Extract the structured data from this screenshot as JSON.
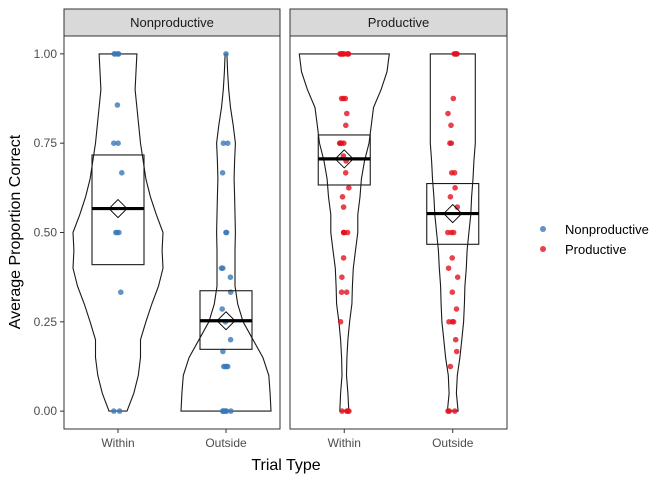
{
  "chart_data": {
    "type": "violin",
    "xlabel": "Trial Type",
    "ylabel": "Average Proportion Correct",
    "categories": [
      "Within",
      "Outside"
    ],
    "ylim": [
      -0.05,
      1.05
    ],
    "yticks": [
      "0.00",
      "0.25",
      "0.50",
      "0.75",
      "1.00"
    ],
    "ytick_values": [
      0,
      0.25,
      0.5,
      0.75,
      1.0
    ],
    "grid": false,
    "legend_position": "right",
    "legend": [
      {
        "name": "Nonproductive",
        "color": "#3a78b6"
      },
      {
        "name": "Productive",
        "color": "#e3121f"
      }
    ],
    "panels": [
      {
        "title": "Nonproductive",
        "group": "Nonproductive",
        "color": "#3a78b6",
        "groups": [
          {
            "category": "Within",
            "mean": 0.567,
            "median": 0.567,
            "box_low": 0.41,
            "box_high": 0.717,
            "violin": [
              [
                0,
                0.2
              ],
              [
                0.05,
                0.35
              ],
              [
                0.1,
                0.45
              ],
              [
                0.15,
                0.5
              ],
              [
                0.2,
                0.5
              ],
              [
                0.25,
                0.62
              ],
              [
                0.3,
                0.75
              ],
              [
                0.35,
                0.9
              ],
              [
                0.4,
                1.0
              ],
              [
                0.45,
                0.98
              ],
              [
                0.5,
                1.0
              ],
              [
                0.55,
                0.85
              ],
              [
                0.6,
                0.72
              ],
              [
                0.65,
                0.62
              ],
              [
                0.7,
                0.56
              ],
              [
                0.75,
                0.5
              ],
              [
                0.8,
                0.46
              ],
              [
                0.85,
                0.42
              ],
              [
                0.9,
                0.38
              ],
              [
                0.95,
                0.4
              ],
              [
                1.0,
                0.42
              ]
            ],
            "points": [
              1,
              1,
              1,
              1,
              0.857,
              0.75,
              0.75,
              0.667,
              0.5,
              0.5,
              0.5,
              0.333,
              0,
              0
            ]
          },
          {
            "category": "Outside",
            "mean": 0.253,
            "median": 0.253,
            "box_low": 0.173,
            "box_high": 0.337,
            "violin": [
              [
                0,
                1.0
              ],
              [
                0.05,
                0.98
              ],
              [
                0.1,
                0.95
              ],
              [
                0.15,
                0.82
              ],
              [
                0.2,
                0.6
              ],
              [
                0.25,
                0.38
              ],
              [
                0.3,
                0.26
              ],
              [
                0.35,
                0.2
              ],
              [
                0.4,
                0.2
              ],
              [
                0.45,
                0.2
              ],
              [
                0.5,
                0.21
              ],
              [
                0.55,
                0.2
              ],
              [
                0.6,
                0.19
              ],
              [
                0.65,
                0.18
              ],
              [
                0.7,
                0.19
              ],
              [
                0.75,
                0.21
              ],
              [
                0.8,
                0.16
              ],
              [
                0.85,
                0.1
              ],
              [
                0.9,
                0.06
              ],
              [
                0.95,
                0.035
              ],
              [
                1.0,
                0.02
              ]
            ],
            "points": [
              1,
              0.75,
              0.75,
              0.667,
              0.5,
              0.5,
              0.4,
              0.4,
              0.375,
              0.333,
              0.286,
              0.25,
              0.2,
              0.167,
              0.125,
              0.125,
              0.125,
              0.125,
              0,
              0,
              0,
              0,
              0,
              0
            ]
          }
        ]
      },
      {
        "title": "Productive",
        "group": "Productive",
        "color": "#e3121f",
        "groups": [
          {
            "category": "Within",
            "mean": 0.706,
            "median": 0.706,
            "box_low": 0.633,
            "box_high": 0.773,
            "violin": [
              [
                0,
                0.1
              ],
              [
                0.05,
                0.08
              ],
              [
                0.1,
                0.05
              ],
              [
                0.15,
                0.06
              ],
              [
                0.2,
                0.08
              ],
              [
                0.25,
                0.12
              ],
              [
                0.3,
                0.17
              ],
              [
                0.35,
                0.18
              ],
              [
                0.4,
                0.2
              ],
              [
                0.45,
                0.25
              ],
              [
                0.5,
                0.3
              ],
              [
                0.55,
                0.3
              ],
              [
                0.6,
                0.35
              ],
              [
                0.65,
                0.38
              ],
              [
                0.7,
                0.45
              ],
              [
                0.75,
                0.55
              ],
              [
                0.8,
                0.6
              ],
              [
                0.85,
                0.65
              ],
              [
                0.9,
                0.82
              ],
              [
                0.95,
                0.95
              ],
              [
                1.0,
                1.0
              ]
            ],
            "points": [
              1,
              1,
              1,
              1,
              1,
              1,
              1,
              1,
              1,
              0.875,
              0.875,
              0.875,
              0.833,
              0.8,
              0.75,
              0.75,
              0.75,
              0.75,
              0.75,
              0.714,
              0.7,
              0.667,
              0.625,
              0.6,
              0.571,
              0.5,
              0.5,
              0.5,
              0.5,
              0.429,
              0.375,
              0.333,
              0.333,
              0.25,
              0,
              0,
              0,
              0
            ]
          },
          {
            "category": "Outside",
            "mean": 0.553,
            "median": 0.553,
            "box_low": 0.467,
            "box_high": 0.637,
            "violin": [
              [
                0,
                0.12
              ],
              [
                0.05,
                0.08
              ],
              [
                0.1,
                0.1
              ],
              [
                0.15,
                0.16
              ],
              [
                0.2,
                0.2
              ],
              [
                0.25,
                0.24
              ],
              [
                0.3,
                0.26
              ],
              [
                0.35,
                0.27
              ],
              [
                0.4,
                0.3
              ],
              [
                0.45,
                0.32
              ],
              [
                0.5,
                0.36
              ],
              [
                0.55,
                0.4
              ],
              [
                0.6,
                0.42
              ],
              [
                0.65,
                0.45
              ],
              [
                0.7,
                0.47
              ],
              [
                0.75,
                0.5
              ],
              [
                0.8,
                0.5
              ],
              [
                0.85,
                0.5
              ],
              [
                0.9,
                0.5
              ],
              [
                0.95,
                0.5
              ],
              [
                1.0,
                0.5
              ]
            ],
            "points": [
              1,
              1,
              1,
              1,
              0.875,
              0.833,
              0.8,
              0.75,
              0.75,
              0.667,
              0.667,
              0.625,
              0.6,
              0.571,
              0.5,
              0.5,
              0.5,
              0.429,
              0.4,
              0.375,
              0.333,
              0.286,
              0.25,
              0.25,
              0.25,
              0.2,
              0.167,
              0.125,
              0,
              0,
              0
            ]
          }
        ]
      }
    ]
  }
}
